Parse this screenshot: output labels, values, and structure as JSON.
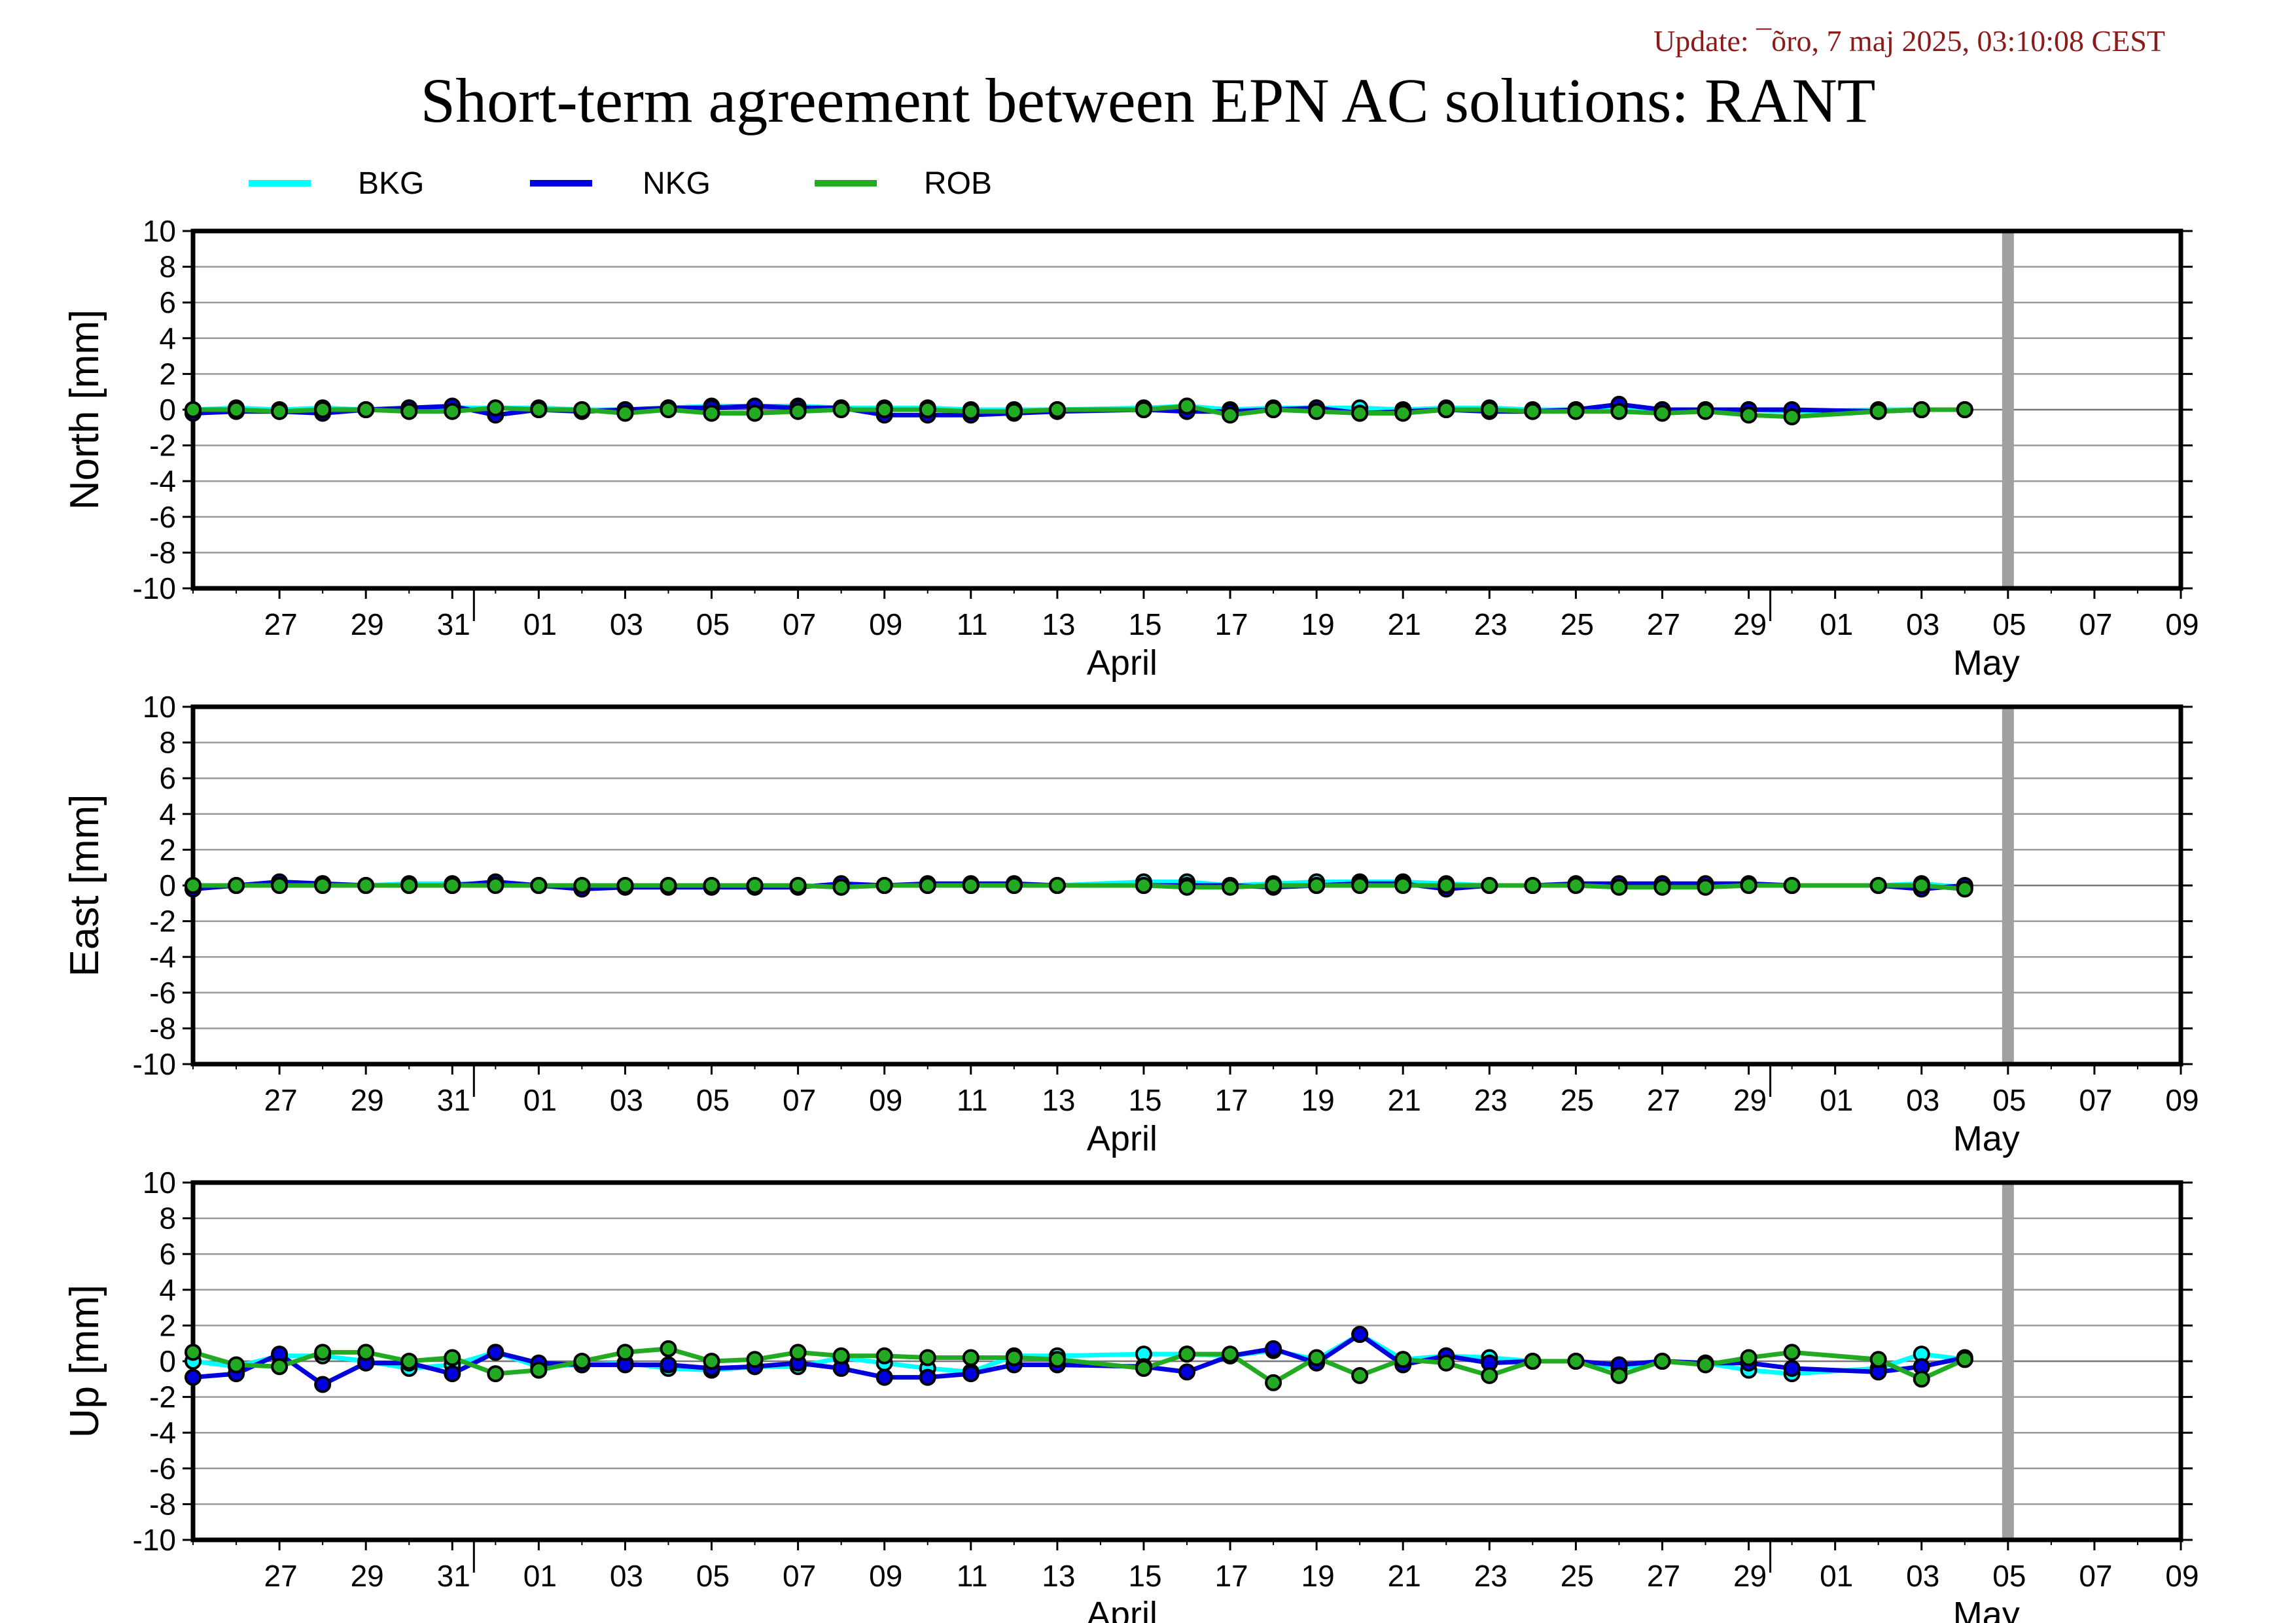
{
  "header": {
    "update_text": "Update: ¯õro, 7 maj 2025, 03:10:08 CEST",
    "title": "Short-term agreement between EPN AC solutions: RANT"
  },
  "legend": [
    {
      "name": "BKG",
      "color": "#00ffff"
    },
    {
      "name": "NKG",
      "color": "#0000dd"
    },
    {
      "name": "ROB",
      "color": "#22aa22"
    }
  ],
  "chart_data": [
    {
      "type": "line",
      "ylabel": "North [mm]",
      "ylim": [
        -10,
        10
      ],
      "yticks": [
        10,
        8,
        6,
        4,
        2,
        0,
        -2,
        -4,
        -6,
        -8,
        -10
      ],
      "xlim": [
        "2025-03-25",
        "2025-05-10"
      ],
      "xtick_labels": [
        "27",
        "29",
        "31",
        "01",
        "03",
        "05",
        "07",
        "09",
        "11",
        "13",
        "15",
        "17",
        "19",
        "21",
        "23",
        "25",
        "27",
        "29",
        "01",
        "03",
        "05",
        "07",
        "09"
      ],
      "month_labels": [
        "April",
        "May"
      ],
      "marker_date": "2025-05-06",
      "x": [
        "2025-03-25",
        "2025-03-26",
        "2025-03-27",
        "2025-03-28",
        "2025-03-29",
        "2025-03-30",
        "2025-03-31",
        "2025-04-01",
        "2025-04-02",
        "2025-04-03",
        "2025-04-04",
        "2025-04-05",
        "2025-04-06",
        "2025-04-07",
        "2025-04-08",
        "2025-04-09",
        "2025-04-10",
        "2025-04-11",
        "2025-04-12",
        "2025-04-13",
        "2025-04-14",
        "2025-04-16",
        "2025-04-17",
        "2025-04-18",
        "2025-04-19",
        "2025-04-20",
        "2025-04-21",
        "2025-04-22",
        "2025-04-23",
        "2025-04-24",
        "2025-04-25",
        "2025-04-26",
        "2025-04-27",
        "2025-04-28",
        "2025-04-29",
        "2025-04-30",
        "2025-05-01",
        "2025-05-03",
        "2025-05-04",
        "2025-05-05"
      ],
      "series": [
        {
          "name": "BKG",
          "values": [
            0.0,
            0.1,
            0.0,
            0.1,
            0.0,
            0.1,
            0.1,
            0.1,
            0.1,
            0.0,
            0.0,
            0.1,
            0.2,
            0.2,
            0.2,
            0.1,
            0.1,
            0.1,
            0.0,
            0.0,
            0.0,
            0.1,
            0.2,
            0.0,
            0.1,
            0.1,
            0.1,
            0.0,
            0.1,
            0.1,
            0.0,
            0.0,
            0.0,
            0.0,
            0.0,
            0.0,
            -0.1,
            0.0,
            0.0,
            0.0
          ]
        },
        {
          "name": "NKG",
          "values": [
            -0.2,
            -0.1,
            -0.1,
            -0.2,
            0.0,
            0.1,
            0.2,
            -0.3,
            0.0,
            -0.1,
            0.0,
            0.1,
            0.1,
            0.2,
            0.1,
            0.1,
            -0.3,
            -0.3,
            -0.3,
            -0.2,
            -0.1,
            0.0,
            -0.1,
            -0.1,
            0.0,
            0.1,
            -0.2,
            -0.1,
            0.0,
            -0.1,
            -0.1,
            0.0,
            0.3,
            0.0,
            0.0,
            0.0,
            0.0,
            -0.1,
            0.0,
            0.0
          ]
        },
        {
          "name": "ROB",
          "values": [
            0.0,
            0.0,
            -0.1,
            0.0,
            0.0,
            -0.1,
            -0.1,
            0.1,
            0.0,
            0.0,
            -0.2,
            0.0,
            -0.2,
            -0.2,
            -0.1,
            0.0,
            0.0,
            0.0,
            -0.1,
            -0.1,
            0.0,
            0.0,
            0.2,
            -0.3,
            0.0,
            -0.1,
            -0.2,
            -0.2,
            0.0,
            0.0,
            -0.1,
            -0.1,
            -0.1,
            -0.2,
            -0.1,
            -0.3,
            -0.4,
            -0.1,
            0.0,
            0.0
          ]
        }
      ]
    },
    {
      "type": "line",
      "ylabel": "East [mm]",
      "ylim": [
        -10,
        10
      ],
      "yticks": [
        10,
        8,
        6,
        4,
        2,
        0,
        -2,
        -4,
        -6,
        -8,
        -10
      ],
      "xlim": [
        "2025-03-25",
        "2025-05-10"
      ],
      "xtick_labels": [
        "27",
        "29",
        "31",
        "01",
        "03",
        "05",
        "07",
        "09",
        "11",
        "13",
        "15",
        "17",
        "19",
        "21",
        "23",
        "25",
        "27",
        "29",
        "01",
        "03",
        "05",
        "07",
        "09"
      ],
      "month_labels": [
        "April",
        "May"
      ],
      "marker_date": "2025-05-06",
      "x": [
        "2025-03-25",
        "2025-03-26",
        "2025-03-27",
        "2025-03-28",
        "2025-03-29",
        "2025-03-30",
        "2025-03-31",
        "2025-04-01",
        "2025-04-02",
        "2025-04-03",
        "2025-04-04",
        "2025-04-05",
        "2025-04-06",
        "2025-04-07",
        "2025-04-08",
        "2025-04-09",
        "2025-04-10",
        "2025-04-11",
        "2025-04-12",
        "2025-04-13",
        "2025-04-14",
        "2025-04-16",
        "2025-04-17",
        "2025-04-18",
        "2025-04-19",
        "2025-04-20",
        "2025-04-21",
        "2025-04-22",
        "2025-04-23",
        "2025-04-24",
        "2025-04-25",
        "2025-04-26",
        "2025-04-27",
        "2025-04-28",
        "2025-04-29",
        "2025-04-30",
        "2025-05-01",
        "2025-05-03",
        "2025-05-04",
        "2025-05-05"
      ],
      "series": [
        {
          "name": "BKG",
          "values": [
            0.0,
            0.0,
            0.1,
            0.1,
            0.0,
            0.1,
            0.1,
            0.1,
            0.0,
            0.0,
            0.0,
            0.0,
            0.0,
            0.0,
            0.0,
            -0.1,
            0.0,
            0.0,
            0.0,
            0.0,
            0.0,
            0.2,
            0.2,
            0.0,
            0.1,
            0.2,
            0.2,
            0.2,
            0.1,
            0.0,
            0.0,
            0.0,
            0.0,
            0.0,
            0.0,
            0.0,
            0.0,
            0.0,
            0.1,
            -0.1
          ]
        },
        {
          "name": "NKG",
          "values": [
            -0.2,
            0.0,
            0.2,
            0.1,
            0.0,
            0.0,
            0.0,
            0.2,
            0.0,
            -0.2,
            -0.1,
            -0.1,
            -0.1,
            -0.1,
            -0.1,
            0.1,
            0.0,
            0.1,
            0.1,
            0.1,
            0.0,
            0.0,
            0.0,
            0.0,
            -0.1,
            0.0,
            0.1,
            0.1,
            -0.2,
            0.0,
            0.0,
            0.1,
            0.1,
            0.1,
            0.1,
            0.1,
            0.0,
            0.0,
            -0.2,
            0.0
          ]
        },
        {
          "name": "ROB",
          "values": [
            0.0,
            0.0,
            0.0,
            0.0,
            0.0,
            0.0,
            0.0,
            0.0,
            0.0,
            0.0,
            0.0,
            0.0,
            0.0,
            0.0,
            0.0,
            -0.1,
            0.0,
            0.0,
            0.0,
            0.0,
            0.0,
            0.0,
            -0.1,
            -0.1,
            0.0,
            0.0,
            0.0,
            0.0,
            0.0,
            0.0,
            0.0,
            0.0,
            -0.1,
            -0.1,
            -0.1,
            0.0,
            0.0,
            0.0,
            0.0,
            -0.2
          ]
        }
      ]
    },
    {
      "type": "line",
      "ylabel": "Up [mm]",
      "ylim": [
        -10,
        10
      ],
      "yticks": [
        10,
        8,
        6,
        4,
        2,
        0,
        -2,
        -4,
        -6,
        -8,
        -10
      ],
      "xlim": [
        "2025-03-25",
        "2025-05-10"
      ],
      "xtick_labels": [
        "27",
        "29",
        "31",
        "01",
        "03",
        "05",
        "07",
        "09",
        "11",
        "13",
        "15",
        "17",
        "19",
        "21",
        "23",
        "25",
        "27",
        "29",
        "01",
        "03",
        "05",
        "07",
        "09"
      ],
      "month_labels": [
        "April",
        "May"
      ],
      "marker_date": "2025-05-06",
      "x": [
        "2025-03-25",
        "2025-03-26",
        "2025-03-27",
        "2025-03-28",
        "2025-03-29",
        "2025-03-30",
        "2025-03-31",
        "2025-04-01",
        "2025-04-02",
        "2025-04-03",
        "2025-04-04",
        "2025-04-05",
        "2025-04-06",
        "2025-04-07",
        "2025-04-08",
        "2025-04-09",
        "2025-04-10",
        "2025-04-11",
        "2025-04-12",
        "2025-04-13",
        "2025-04-14",
        "2025-04-16",
        "2025-04-17",
        "2025-04-18",
        "2025-04-19",
        "2025-04-20",
        "2025-04-21",
        "2025-04-22",
        "2025-04-23",
        "2025-04-24",
        "2025-04-25",
        "2025-04-26",
        "2025-04-27",
        "2025-04-28",
        "2025-04-29",
        "2025-04-30",
        "2025-05-01",
        "2025-05-03",
        "2025-05-04",
        "2025-05-05"
      ],
      "series": [
        {
          "name": "BKG",
          "values": [
            0.0,
            -0.3,
            0.3,
            0.3,
            0.0,
            -0.4,
            -0.2,
            0.5,
            -0.3,
            -0.2,
            -0.1,
            -0.4,
            -0.5,
            -0.3,
            -0.3,
            0.2,
            -0.1,
            -0.4,
            -0.6,
            0.3,
            0.3,
            0.4,
            0.4,
            0.3,
            0.6,
            0.1,
            1.5,
            0.1,
            0.3,
            0.2,
            0.0,
            0.0,
            -0.4,
            0.0,
            -0.1,
            -0.5,
            -0.7,
            -0.4,
            0.4,
            0.1
          ]
        },
        {
          "name": "NKG",
          "values": [
            -0.9,
            -0.7,
            0.4,
            -1.3,
            -0.1,
            -0.1,
            -0.7,
            0.5,
            -0.1,
            -0.2,
            -0.2,
            -0.2,
            -0.4,
            -0.3,
            -0.1,
            -0.4,
            -0.9,
            -0.9,
            -0.7,
            -0.2,
            -0.2,
            -0.3,
            -0.6,
            0.3,
            0.7,
            -0.1,
            1.5,
            -0.2,
            0.3,
            -0.1,
            0.0,
            0.0,
            -0.2,
            0.0,
            -0.1,
            -0.1,
            -0.4,
            -0.6,
            -0.3,
            0.2
          ]
        },
        {
          "name": "ROB",
          "values": [
            0.5,
            -0.2,
            -0.3,
            0.5,
            0.5,
            0.0,
            0.2,
            -0.7,
            -0.5,
            0.0,
            0.5,
            0.7,
            0.0,
            0.1,
            0.5,
            0.3,
            0.3,
            0.2,
            0.2,
            0.2,
            0.1,
            -0.4,
            0.4,
            0.4,
            -1.2,
            0.2,
            -0.8,
            0.1,
            -0.1,
            -0.8,
            0.0,
            0.0,
            -0.8,
            0.0,
            -0.2,
            0.2,
            0.5,
            0.1,
            -1.0,
            0.1
          ]
        }
      ]
    }
  ]
}
